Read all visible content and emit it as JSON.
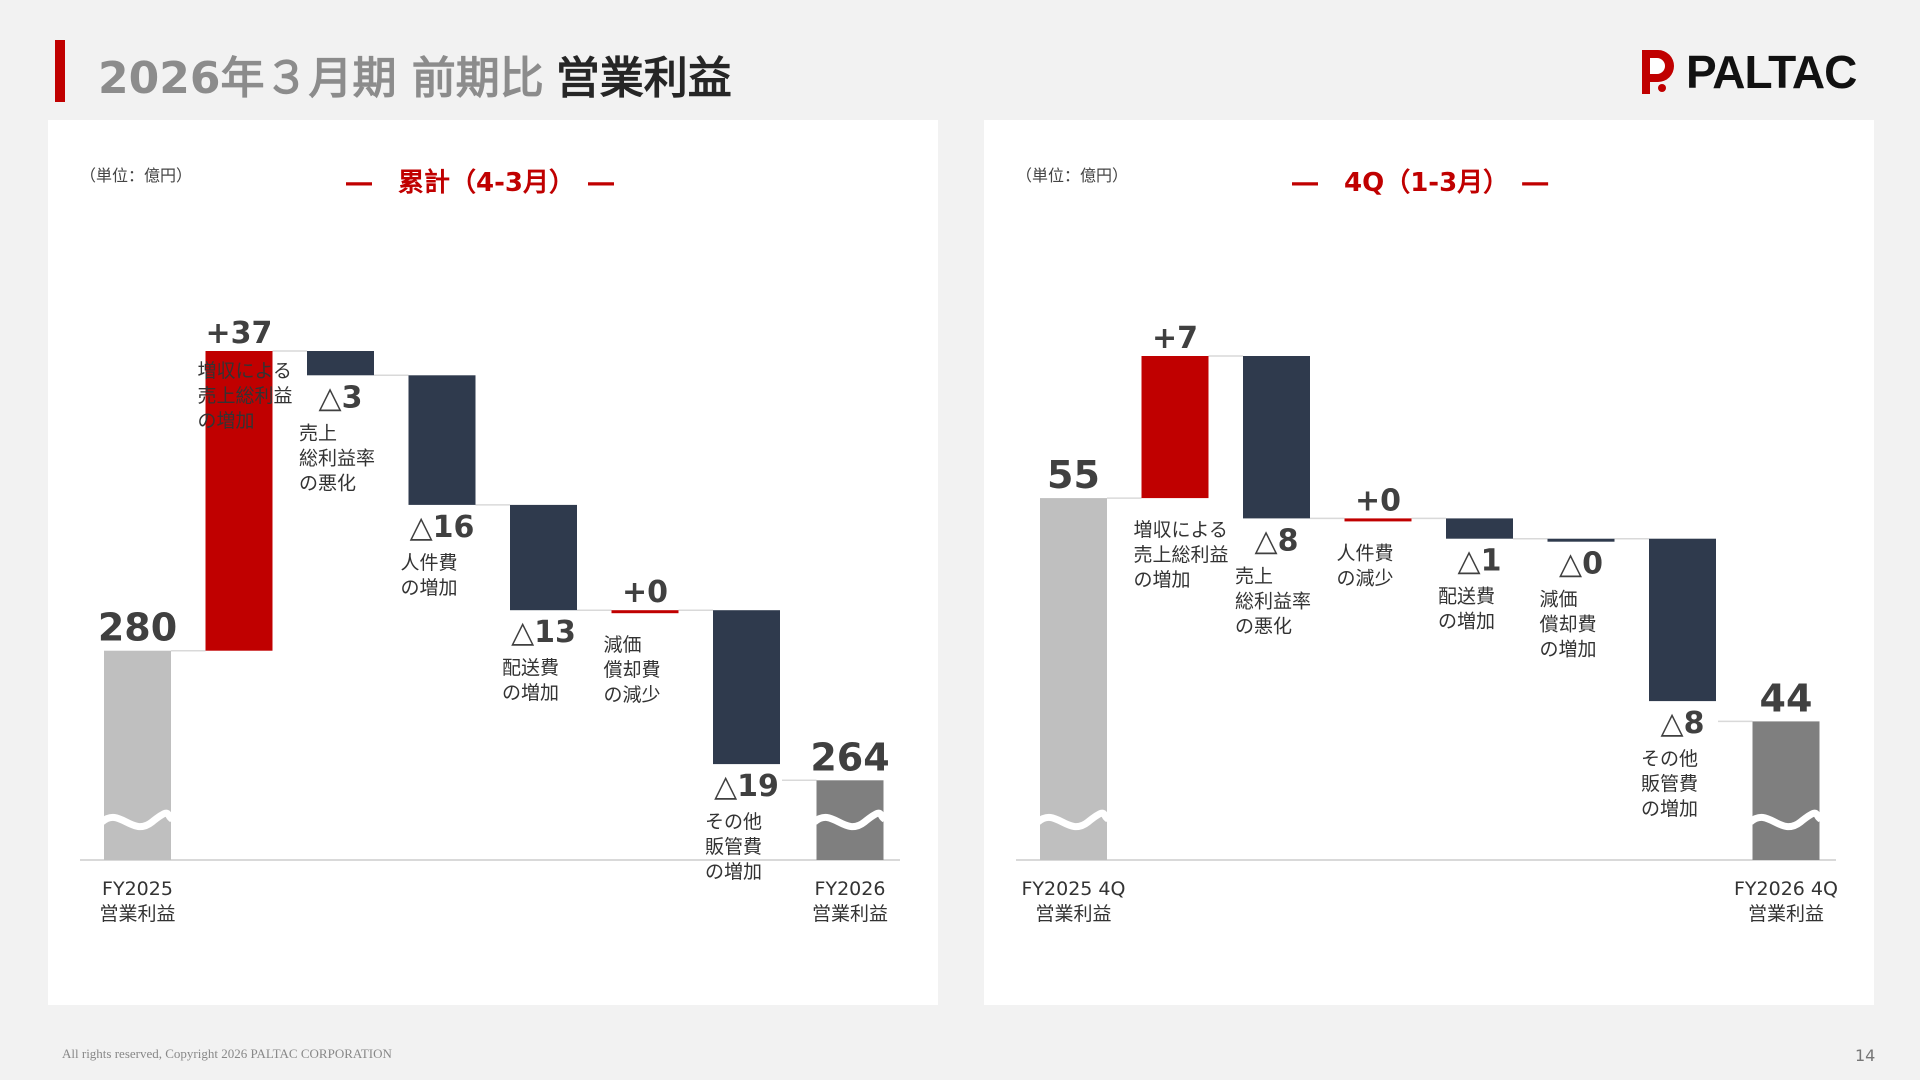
{
  "header": {
    "title_prefix": "2026年３月期 前期比",
    "title_main": "営業利益",
    "brand": "PALTAC",
    "brand_color": "#c00000"
  },
  "footer": {
    "copyright": "All rights reserved, Copyright 2026 PALTAC CORPORATION",
    "page": "14"
  },
  "colors": {
    "increase": "#c00000",
    "decrease": "#2f3a4d",
    "start": "#bfbfbf",
    "end": "#7f7f7f"
  },
  "chart_data": [
    {
      "type": "waterfall",
      "unit_label": "（単位：億円）",
      "title": "―　累計（4-3月）　―",
      "axis_break": true,
      "start": {
        "value": 280,
        "label": "280",
        "category": [
          "FY2025",
          "営業利益"
        ]
      },
      "steps": [
        {
          "value": 37,
          "display": "+37",
          "category": [
            "増収による",
            "売上総利益",
            "の増加"
          ]
        },
        {
          "value": -3,
          "display": "△3",
          "category": [
            "売上",
            "総利益率",
            "の悪化"
          ]
        },
        {
          "value": -16,
          "display": "△16",
          "category": [
            "人件費",
            "の増加"
          ]
        },
        {
          "value": -13,
          "display": "△13",
          "category": [
            "配送費",
            "の増加"
          ]
        },
        {
          "value": 0,
          "display": "+0",
          "category": [
            "減価",
            "償却費",
            "の減少"
          ]
        },
        {
          "value": -19,
          "display": "△19",
          "category": [
            "その他",
            "販管費",
            "の増加"
          ]
        }
      ],
      "end": {
        "value": 264,
        "label": "264",
        "category": [
          "FY2026",
          "営業利益"
        ]
      }
    },
    {
      "type": "waterfall",
      "unit_label": "（単位：億円）",
      "title": "―　4Q（1-3月）　―",
      "axis_break": true,
      "start": {
        "value": 55,
        "label": "55",
        "category": [
          "FY2025 4Q",
          "営業利益"
        ]
      },
      "steps": [
        {
          "value": 7,
          "display": "+7",
          "category": [
            "増収による",
            "売上総利益",
            "の増加"
          ]
        },
        {
          "value": -8,
          "display": "△8",
          "category": [
            "売上",
            "総利益率",
            "の悪化"
          ]
        },
        {
          "value": 0,
          "display": "+0",
          "category": [
            "人件費",
            "の減少"
          ]
        },
        {
          "value": -1,
          "display": "△1",
          "category": [
            "配送費",
            "の増加"
          ]
        },
        {
          "value": 0,
          "display": "△0",
          "category": [
            "減価",
            "償却費",
            "の増加"
          ]
        },
        {
          "value": -8,
          "display": "△8",
          "category": [
            "その他",
            "販管費",
            "の増加"
          ]
        }
      ],
      "end": {
        "value": 44,
        "label": "44",
        "category": [
          "FY2026 4Q",
          "営業利益"
        ]
      }
    }
  ]
}
